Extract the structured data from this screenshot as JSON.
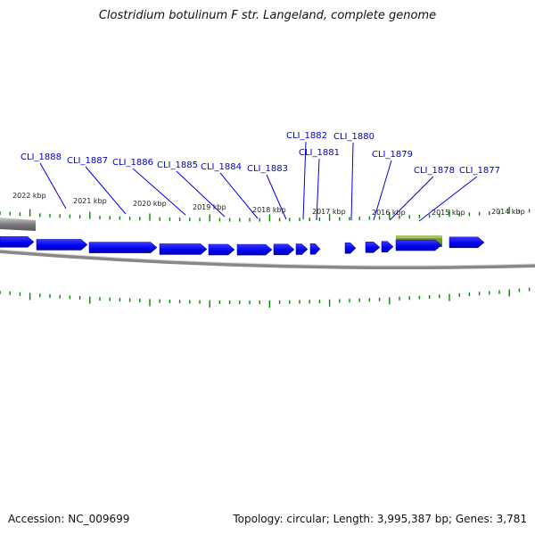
{
  "title": "Clostridium botulinum F str. Langeland, complete genome",
  "accession": "Accession: NC_009699",
  "summary": "Topology: circular; Length: 3,995,387 bp; Genes: 3,781",
  "colors": {
    "gene": "#0000ee",
    "feature": "#6b8e23",
    "tick": "#008800",
    "backbone": "#888888",
    "label": "#0000cc"
  },
  "tick_labels": [
    "2022 kbp",
    "2021 kbp",
    "2020 kbp",
    "2019 kbp",
    "2018 kbp",
    "2017 kbp",
    "2016 kbp",
    "2015 kbp",
    "2014 kbp"
  ],
  "gene_labels": [
    "CLI_1888",
    "CLI_1887",
    "CLI_1886",
    "CLI_1885",
    "CLI_1884",
    "CLI_1883",
    "CLI_1882",
    "CLI_1881",
    "CLI_1880",
    "CLI_1879",
    "CLI_1878",
    "CLI_1877"
  ]
}
